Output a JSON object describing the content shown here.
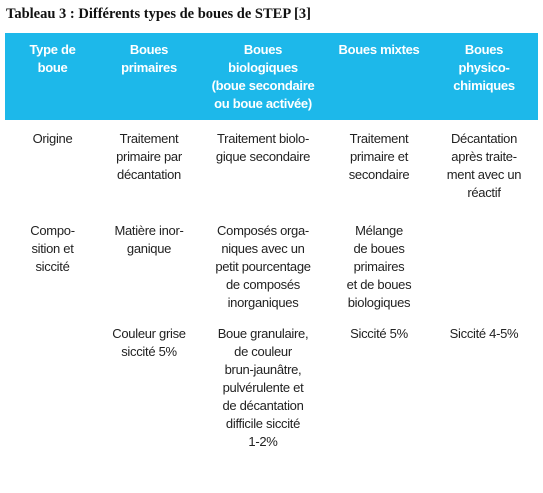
{
  "title": "Tableau 3 : Différents types de boues de STEP [3]",
  "table": {
    "header": [
      "Type de\nboue",
      "Boues\nprimaires",
      "Boues\nbiologiques\n(boue secondaire\nou boue activée)",
      "Boues mixtes",
      "Boues\nphysico-\nchimiques"
    ],
    "rows": [
      [
        "Origine",
        "Traitement\nprimaire par\ndécantation",
        "Traitement biolo-\ngique secondaire",
        "Traitement\nprimaire et\nsecondaire",
        "Décantation\naprès traite-\nment avec un\nréactif"
      ],
      [
        "Compo-\nsition et\nsiccité",
        "Matière inor-\nganique",
        "Composés orga-\nniques avec un\npetit pourcentage\nde composés\ninorganiques",
        "Mélange\nde boues\nprimaires\net de boues\nbiologiques",
        null
      ],
      [
        null,
        "Couleur grise\nsiccité 5%",
        "Boue granulaire,\nde couleur\nbrun-jaunâtre,\npulvérulente et\nde décantation\ndifficile siccité\n1-2%",
        "Siccité 5%",
        "Siccité 4-5%"
      ]
    ]
  }
}
